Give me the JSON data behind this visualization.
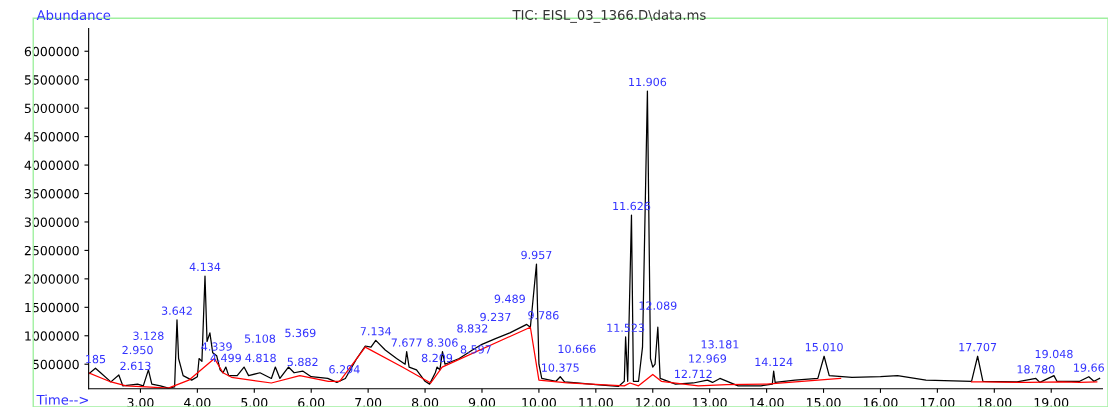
{
  "chart_data": {
    "type": "line",
    "title": "TIC: EISL_03_1366.D\\data.ms",
    "xlabel": "Time-->",
    "ylabel": "Abundance",
    "xlim": [
      2.09,
      19.9
    ],
    "ylim": [
      70000,
      6400000
    ],
    "xticks": [
      {
        "value": 3,
        "label": "3.00"
      },
      {
        "value": 4,
        "label": "4.00"
      },
      {
        "value": 5,
        "label": "5.00"
      },
      {
        "value": 6,
        "label": "6.00"
      },
      {
        "value": 7,
        "label": "7.00"
      },
      {
        "value": 8,
        "label": "8.00"
      },
      {
        "value": 9,
        "label": "9.00"
      },
      {
        "value": 10,
        "label": "10.00"
      },
      {
        "value": 11,
        "label": "11.00"
      },
      {
        "value": 12,
        "label": "12.00"
      },
      {
        "value": 13,
        "label": "13.00"
      },
      {
        "value": 14,
        "label": "14.00"
      },
      {
        "value": 15,
        "label": "15.00"
      },
      {
        "value": 16,
        "label": "16.00"
      },
      {
        "value": 17,
        "label": "17.00"
      },
      {
        "value": 18,
        "label": "18.00"
      },
      {
        "value": 19,
        "label": "19.00"
      }
    ],
    "yticks": [
      500000,
      1000000,
      1500000,
      2000000,
      2500000,
      3000000,
      3500000,
      4000000,
      4500000,
      5000000,
      5500000,
      6000000
    ],
    "grid": false,
    "legend": false,
    "marker": "none",
    "line_style": "solid",
    "series": [
      {
        "color": "#000000",
        "x": [
          2.09,
          2.21,
          2.3,
          2.48,
          2.62,
          2.69,
          2.95,
          3.05,
          3.14,
          3.2,
          3.35,
          3.49,
          3.6,
          3.642,
          3.67,
          3.75,
          3.9,
          4.0,
          4.03,
          4.08,
          4.134,
          4.17,
          4.22,
          4.27,
          4.339,
          4.4,
          4.45,
          4.5,
          4.55,
          4.7,
          4.82,
          4.9,
          5.1,
          5.3,
          5.37,
          5.45,
          5.6,
          5.7,
          5.85,
          6.0,
          6.29,
          6.45,
          6.6,
          6.8,
          6.95,
          7.05,
          7.134,
          7.3,
          7.5,
          7.65,
          7.677,
          7.72,
          7.85,
          8.0,
          8.08,
          8.18,
          8.21,
          8.26,
          8.306,
          8.35,
          8.6,
          8.832,
          9.0,
          9.237,
          9.489,
          9.786,
          9.85,
          9.957,
          10.0,
          10.05,
          10.3,
          10.375,
          10.45,
          10.666,
          11.0,
          11.4,
          11.5,
          11.523,
          11.56,
          11.626,
          11.66,
          11.75,
          11.82,
          11.906,
          11.96,
          12.0,
          12.04,
          12.089,
          12.13,
          12.4,
          12.712,
          12.96,
          13.05,
          13.18,
          13.5,
          13.9,
          14.1,
          14.124,
          14.15,
          14.5,
          14.9,
          15.01,
          15.1,
          15.5,
          16.0,
          16.3,
          16.8,
          17.6,
          17.707,
          17.8,
          18.4,
          18.73,
          18.8,
          19.048,
          19.1,
          19.5,
          19.66,
          19.75,
          19.85
        ],
        "values": [
          330000,
          430000,
          350000,
          190000,
          310000,
          120000,
          150000,
          120000,
          400000,
          150000,
          120000,
          80000,
          100000,
          1280000,
          600000,
          300000,
          220000,
          280000,
          600000,
          550000,
          2050000,
          900000,
          1050000,
          700000,
          650000,
          400000,
          350000,
          450000,
          300000,
          300000,
          450000,
          300000,
          350000,
          250000,
          450000,
          250000,
          450000,
          350000,
          380000,
          280000,
          250000,
          180000,
          250000,
          600000,
          820000,
          800000,
          920000,
          750000,
          600000,
          500000,
          720000,
          450000,
          400000,
          200000,
          150000,
          350000,
          450000,
          400000,
          720000,
          500000,
          600000,
          750000,
          850000,
          950000,
          1050000,
          1200000,
          1150000,
          2260000,
          500000,
          250000,
          200000,
          280000,
          190000,
          170000,
          140000,
          110000,
          200000,
          980000,
          200000,
          3120000,
          200000,
          200000,
          800000,
          5300000,
          600000,
          450000,
          500000,
          1150000,
          250000,
          150000,
          170000,
          220000,
          180000,
          250000,
          120000,
          120000,
          150000,
          380000,
          180000,
          220000,
          250000,
          640000,
          300000,
          270000,
          280000,
          300000,
          220000,
          200000,
          640000,
          200000,
          190000,
          250000,
          180000,
          300000,
          200000,
          200000,
          280000,
          200000,
          250000
        ]
      },
      {
        "color": "#ff0000",
        "x": [
          2.09,
          2.45,
          2.75,
          3.1,
          3.49,
          3.85,
          4.3,
          4.45,
          4.6,
          5.3,
          5.8,
          6.3,
          6.5,
          6.95,
          7.6,
          8.1,
          8.3,
          9.85,
          10.0,
          10.5,
          11.5,
          11.6,
          11.75,
          12.0,
          12.15,
          12.8,
          13.3,
          14.0,
          14.9,
          15.3,
          15.4,
          17.6,
          17.8,
          18.6,
          19.2,
          19.5,
          19.8
        ],
        "values": [
          350000,
          200000,
          120000,
          100000,
          80000,
          220000,
          600000,
          350000,
          270000,
          170000,
          300000,
          200000,
          200000,
          800000,
          450000,
          170000,
          450000,
          1150000,
          220000,
          170000,
          120000,
          170000,
          120000,
          320000,
          200000,
          120000,
          140000,
          150000,
          220000,
          250000,
          null,
          190000,
          190000,
          180000,
          190000,
          180000,
          190000
        ]
      }
    ],
    "annotations": [
      {
        "text": "185",
        "x": 2.21,
        "y": 430000
      },
      {
        "text": "2.613",
        "x": 2.62,
        "y": 310000
      },
      {
        "text": "2.950",
        "x": 2.95,
        "y": 150000
      },
      {
        "text": "3.128",
        "x": 3.14,
        "y": 400000
      },
      {
        "text": "3.642",
        "x": 3.642,
        "y": 1280000
      },
      {
        "text": "4.134",
        "x": 4.134,
        "y": 2050000
      },
      {
        "text": "4.339",
        "x": 4.339,
        "y": 650000
      },
      {
        "text": "4.499",
        "x": 4.5,
        "y": 450000
      },
      {
        "text": "4.818",
        "x": 4.82,
        "y": 450000
      },
      {
        "text": "5.108",
        "x": 5.1,
        "y": 350000
      },
      {
        "text": "5.369",
        "x": 5.37,
        "y": 450000
      },
      {
        "text": "5.882",
        "x": 5.85,
        "y": 380000
      },
      {
        "text": "6.294",
        "x": 6.29,
        "y": 250000
      },
      {
        "text": "7.134",
        "x": 7.134,
        "y": 920000
      },
      {
        "text": "7.677",
        "x": 7.677,
        "y": 720000
      },
      {
        "text": "8.209",
        "x": 8.21,
        "y": 450000
      },
      {
        "text": "8.306",
        "x": 8.306,
        "y": 720000
      },
      {
        "text": "8.597",
        "x": 8.6,
        "y": 600000
      },
      {
        "text": "8.832",
        "x": 8.832,
        "y": 750000
      },
      {
        "text": "9.237",
        "x": 9.237,
        "y": 950000
      },
      {
        "text": "9.489",
        "x": 9.489,
        "y": 1050000
      },
      {
        "text": "9.786",
        "x": 9.786,
        "y": 1200000
      },
      {
        "text": "9.957",
        "x": 9.957,
        "y": 2260000
      },
      {
        "text": "10.375",
        "x": 10.375,
        "y": 280000
      },
      {
        "text": "10.666",
        "x": 10.666,
        "y": 170000
      },
      {
        "text": "11.523",
        "x": 11.523,
        "y": 980000
      },
      {
        "text": "11.626",
        "x": 11.626,
        "y": 3120000
      },
      {
        "text": "11.906",
        "x": 11.906,
        "y": 5300000
      },
      {
        "text": "12.089",
        "x": 12.089,
        "y": 1150000
      },
      {
        "text": "12.712",
        "x": 12.712,
        "y": 170000
      },
      {
        "text": "12.969",
        "x": 12.96,
        "y": 220000
      },
      {
        "text": "13.181",
        "x": 13.18,
        "y": 250000
      },
      {
        "text": "14.124",
        "x": 14.124,
        "y": 380000
      },
      {
        "text": "15.010",
        "x": 15.01,
        "y": 640000
      },
      {
        "text": "17.707",
        "x": 17.707,
        "y": 640000
      },
      {
        "text": "18.780",
        "x": 18.73,
        "y": 250000
      },
      {
        "text": "19.048",
        "x": 19.048,
        "y": 300000
      },
      {
        "text": "19.66",
        "x": 19.66,
        "y": 280000
      }
    ]
  }
}
